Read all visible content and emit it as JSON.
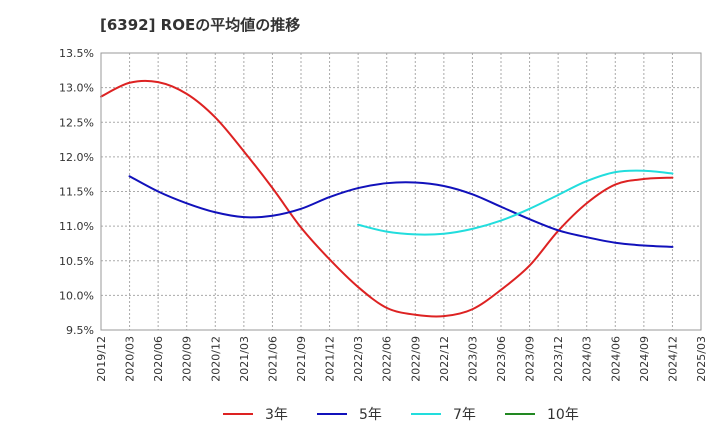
{
  "chart_data": {
    "type": "line",
    "title": "[6392]  ROEの平均値の推移",
    "xlabel": "",
    "ylabel": "",
    "ylim": [
      9.5,
      13.5
    ],
    "yticks": [
      {
        "value": 9.5,
        "label": "9.5%"
      },
      {
        "value": 10.0,
        "label": "10.0%"
      },
      {
        "value": 10.5,
        "label": "10.5%"
      },
      {
        "value": 11.0,
        "label": "11.0%"
      },
      {
        "value": 11.5,
        "label": "11.5%"
      },
      {
        "value": 12.0,
        "label": "12.0%"
      },
      {
        "value": 12.5,
        "label": "12.5%"
      },
      {
        "value": 13.0,
        "label": "13.0%"
      },
      {
        "value": 13.5,
        "label": "13.5%"
      }
    ],
    "xrange": [
      "2019/12",
      "2025/03"
    ],
    "xticks": [
      "2019/12",
      "2020/03",
      "2020/06",
      "2020/09",
      "2020/12",
      "2021/03",
      "2021/06",
      "2021/09",
      "2021/12",
      "2022/03",
      "2022/06",
      "2022/09",
      "2022/12",
      "2023/03",
      "2023/06",
      "2023/09",
      "2023/12",
      "2024/03",
      "2024/06",
      "2024/09",
      "2024/12",
      "2025/03"
    ],
    "grid": true,
    "legend_position": "bottom",
    "series": [
      {
        "name": "3年",
        "color": "#dd2222",
        "points": [
          [
            "2019/12",
            12.87
          ],
          [
            "2020/03",
            13.07
          ],
          [
            "2020/06",
            13.08
          ],
          [
            "2020/09",
            12.91
          ],
          [
            "2020/12",
            12.57
          ],
          [
            "2021/03",
            12.08
          ],
          [
            "2021/06",
            11.55
          ],
          [
            "2021/09",
            10.98
          ],
          [
            "2021/12",
            10.52
          ],
          [
            "2022/03",
            10.12
          ],
          [
            "2022/06",
            9.82
          ],
          [
            "2022/09",
            9.72
          ],
          [
            "2022/12",
            9.7
          ],
          [
            "2023/03",
            9.8
          ],
          [
            "2023/06",
            10.08
          ],
          [
            "2023/09",
            10.43
          ],
          [
            "2023/12",
            10.93
          ],
          [
            "2024/03",
            11.33
          ],
          [
            "2024/06",
            11.6
          ],
          [
            "2024/09",
            11.68
          ],
          [
            "2024/12",
            11.7
          ]
        ]
      },
      {
        "name": "5年",
        "color": "#1111bb",
        "points": [
          [
            "2020/03",
            11.72
          ],
          [
            "2020/06",
            11.5
          ],
          [
            "2020/09",
            11.33
          ],
          [
            "2020/12",
            11.2
          ],
          [
            "2021/03",
            11.13
          ],
          [
            "2021/06",
            11.15
          ],
          [
            "2021/09",
            11.25
          ],
          [
            "2021/12",
            11.42
          ],
          [
            "2022/03",
            11.55
          ],
          [
            "2022/06",
            11.62
          ],
          [
            "2022/09",
            11.63
          ],
          [
            "2022/12",
            11.58
          ],
          [
            "2023/03",
            11.46
          ],
          [
            "2023/06",
            11.28
          ],
          [
            "2023/09",
            11.1
          ],
          [
            "2023/12",
            10.94
          ],
          [
            "2024/03",
            10.84
          ],
          [
            "2024/06",
            10.76
          ],
          [
            "2024/09",
            10.72
          ],
          [
            "2024/12",
            10.7
          ]
        ]
      },
      {
        "name": "7年",
        "color": "#22dddd",
        "points": [
          [
            "2022/03",
            11.02
          ],
          [
            "2022/06",
            10.92
          ],
          [
            "2022/09",
            10.88
          ],
          [
            "2022/12",
            10.89
          ],
          [
            "2023/03",
            10.96
          ],
          [
            "2023/06",
            11.08
          ],
          [
            "2023/09",
            11.25
          ],
          [
            "2023/12",
            11.45
          ],
          [
            "2024/03",
            11.65
          ],
          [
            "2024/06",
            11.78
          ],
          [
            "2024/09",
            11.8
          ],
          [
            "2024/12",
            11.76
          ]
        ]
      },
      {
        "name": "10年",
        "color": "#228822",
        "points": []
      }
    ]
  }
}
